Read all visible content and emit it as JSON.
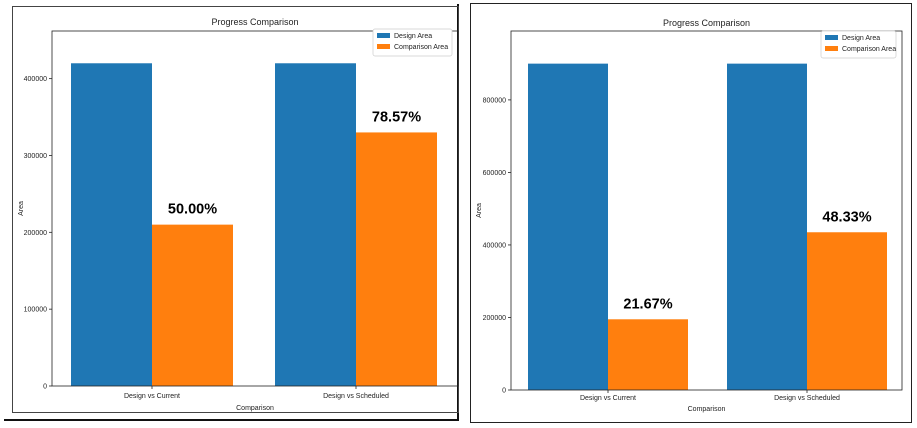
{
  "chart_data": [
    {
      "type": "bar",
      "title": "Progress Comparison",
      "xlabel": "Comparison",
      "ylabel": "Area",
      "categories": [
        "Design vs Current",
        "Design vs Scheduled"
      ],
      "series": [
        {
          "name": "Design Area",
          "values": [
            420000,
            420000
          ],
          "color": "#1f77b4"
        },
        {
          "name": "Comparison Area",
          "values": [
            210000,
            330000
          ],
          "color": "#ff7f0e"
        }
      ],
      "annotations": [
        "50.00%",
        "78.57%"
      ],
      "yticks": [
        0,
        100000,
        200000,
        300000,
        400000
      ],
      "ytick_labels": [
        "0",
        "100000",
        "200000",
        "300000",
        "400000"
      ],
      "ylim": [
        0,
        462000
      ],
      "legend": "top-right",
      "grid": false
    },
    {
      "type": "bar",
      "title": "Progress Comparison",
      "xlabel": "Comparison",
      "ylabel": "Area",
      "categories": [
        "Design vs Current",
        "Design vs Scheduled"
      ],
      "series": [
        {
          "name": "Design Area",
          "values": [
            900000,
            900000
          ],
          "color": "#1f77b4"
        },
        {
          "name": "Comparison Area",
          "values": [
            195000,
            435000
          ],
          "color": "#ff7f0e"
        }
      ],
      "annotations": [
        "21.67%",
        "48.33%"
      ],
      "yticks": [
        0,
        200000,
        400000,
        600000,
        800000
      ],
      "ytick_labels": [
        "0",
        "200000",
        "400000",
        "600000",
        "800000"
      ],
      "ylim": [
        0,
        990000
      ],
      "legend": "top-right",
      "grid": false
    }
  ]
}
